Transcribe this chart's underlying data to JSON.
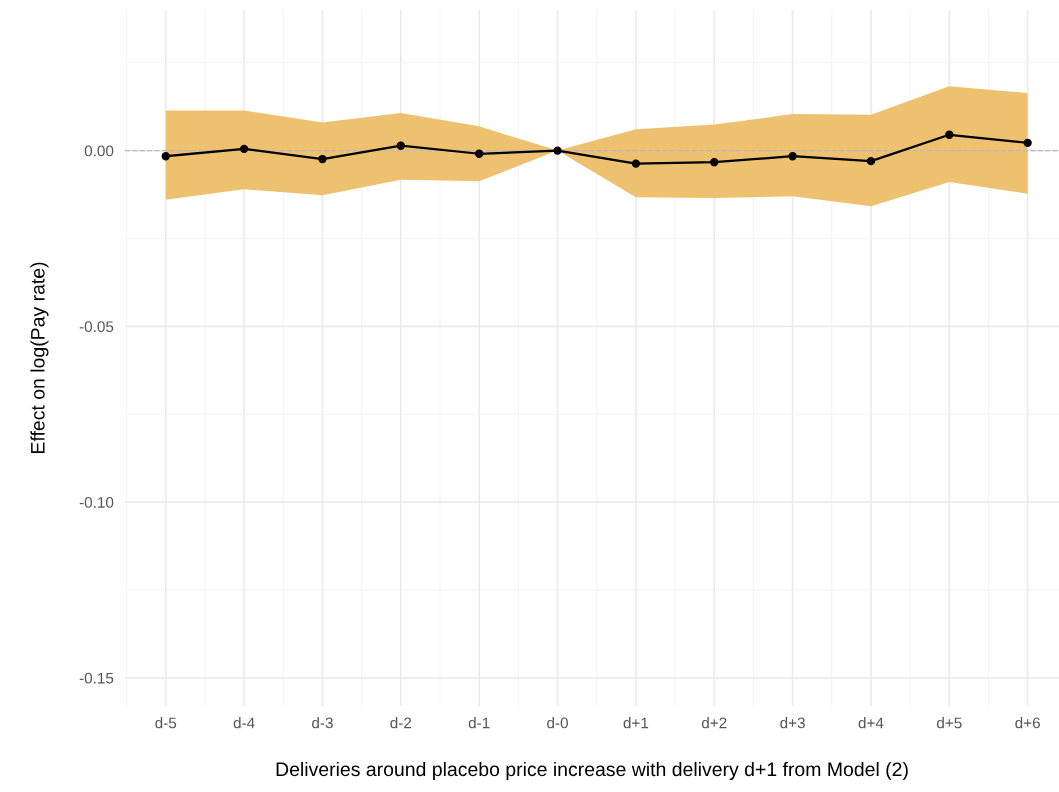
{
  "chart_data": {
    "type": "line",
    "xlabel": "Deliveries around placebo price increase with delivery d+1 from Model (2)",
    "ylabel": "Effect on log(Pay rate)",
    "categories": [
      "d-5",
      "d-4",
      "d-3",
      "d-2",
      "d-1",
      "d-0",
      "d+1",
      "d+2",
      "d+3",
      "d+4",
      "d+5",
      "d+6"
    ],
    "series": [
      {
        "color": "#000000",
        "values": [
          -0.0016,
          0.0005,
          -0.0024,
          0.0014,
          -0.0009,
          0.0,
          -0.0037,
          -0.0033,
          -0.0016,
          -0.003,
          0.0045,
          0.0022
        ],
        "lower": [
          -0.014,
          -0.011,
          -0.0127,
          -0.0083,
          -0.0087,
          0.0,
          -0.0133,
          -0.0135,
          -0.013,
          -0.0158,
          -0.0089,
          -0.0123
        ],
        "upper": [
          0.0114,
          0.0114,
          0.008,
          0.0107,
          0.0069,
          0.0,
          0.0061,
          0.0074,
          0.0104,
          0.0102,
          0.0183,
          0.0164
        ]
      }
    ],
    "ylim": [
      -0.158,
      0.04
    ],
    "yticks": [
      {
        "value": -0.15,
        "label": "-0.15"
      },
      {
        "value": -0.1,
        "label": "-0.10"
      },
      {
        "value": -0.05,
        "label": "-0.05"
      },
      {
        "value": 0,
        "label": "0.00"
      }
    ],
    "ref_lines": [
      {
        "axis": "y",
        "value": 0,
        "label": null,
        "color": "#bbbbbb",
        "line_style": "dashed"
      }
    ],
    "grid": true,
    "marker": "circle",
    "line_style": "solid"
  }
}
